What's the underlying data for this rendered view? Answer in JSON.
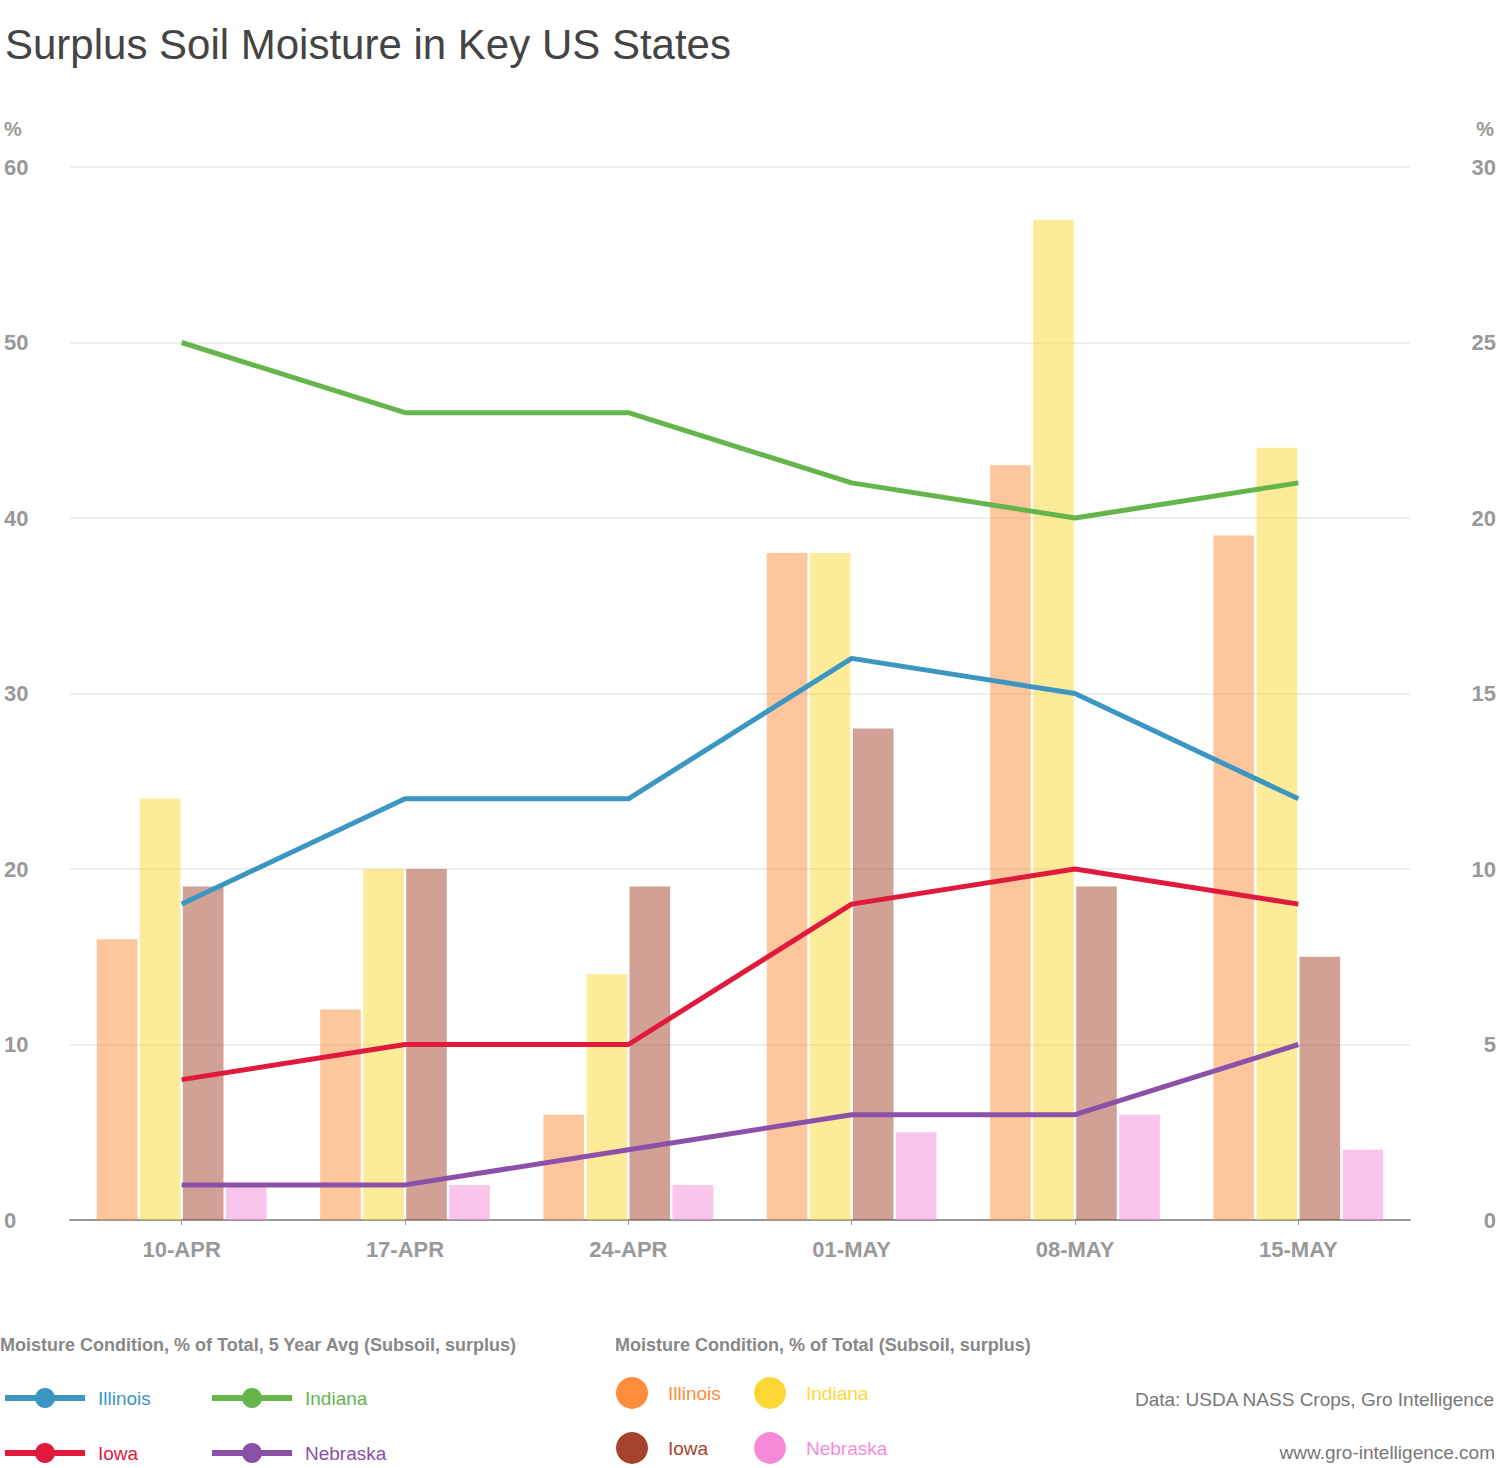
{
  "chart_data": {
    "type": "bar",
    "title": "Surplus Soil Moisture in Key US States",
    "categories": [
      "10-APR",
      "17-APR",
      "24-APR",
      "01-MAY",
      "08-MAY",
      "15-MAY"
    ],
    "series": [
      {
        "name": "Illinois",
        "type": "bar",
        "color": "#fd8d3c",
        "values": [
          16,
          12,
          6,
          38,
          43,
          39
        ]
      },
      {
        "name": "Indiana",
        "type": "bar",
        "color": "#fdd835",
        "values": [
          24,
          20,
          14,
          38,
          57,
          44
        ]
      },
      {
        "name": "Iowa",
        "type": "bar",
        "color": "#a5432e",
        "values": [
          19,
          20,
          19,
          28,
          19,
          15
        ]
      },
      {
        "name": "Nebraska",
        "type": "bar",
        "color": "#f58bd8",
        "values": [
          2,
          2,
          2,
          5,
          6,
          4
        ]
      },
      {
        "name": "Illinois",
        "type": "line",
        "axis": "y2",
        "color": "#3b97c1",
        "values": [
          9,
          12,
          12,
          16,
          15,
          12
        ]
      },
      {
        "name": "Indiana",
        "type": "line",
        "axis": "y2",
        "color": "#65b54b",
        "values": [
          25,
          23,
          23,
          21,
          20,
          21
        ]
      },
      {
        "name": "Iowa",
        "type": "line",
        "axis": "y2",
        "color": "#e01a3c",
        "values": [
          4,
          5,
          5,
          9,
          10,
          9
        ]
      },
      {
        "name": "Nebraska",
        "type": "line",
        "axis": "y2",
        "color": "#8b50a8",
        "values": [
          1,
          1,
          2,
          3,
          3,
          5
        ]
      }
    ],
    "ylim": [
      0,
      60
    ],
    "yticks": [
      0,
      10,
      20,
      30,
      40,
      50,
      60
    ],
    "y2lim": [
      0,
      30
    ],
    "y2ticks": [
      0,
      5,
      10,
      15,
      20,
      25,
      30
    ],
    "y_label": "%",
    "y2_label": "%",
    "grid": true,
    "line_legend_title": "Moisture Condition, % of Total, 5 Year Avg (Subsoil, surplus)",
    "bar_legend_title": "Moisture Condition, % of Total (Subsoil, surplus)",
    "source": "Data: USDA NASS Crops, Gro Intelligence",
    "url": "www.gro-intelligence.com"
  }
}
